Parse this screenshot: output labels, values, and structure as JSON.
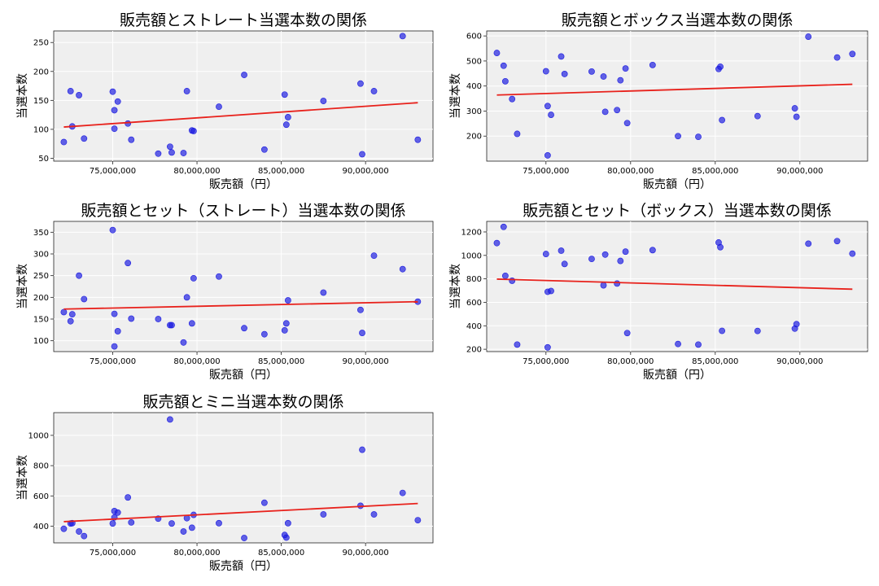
{
  "chart_data": [
    {
      "type": "scatter",
      "title": "販売額とストレート当選本数の関係",
      "xlabel": "販売額（円）",
      "ylabel": "当選本数",
      "xlim": [
        71500000,
        94000000
      ],
      "ylim": [
        45,
        270
      ],
      "xticks": [
        75000000,
        80000000,
        85000000,
        90000000
      ],
      "xtick_labels": [
        "75,000,000",
        "80,000,000",
        "85,000,000",
        "90,000,000"
      ],
      "yticks": [
        50,
        100,
        150,
        200,
        250
      ],
      "ytick_labels": [
        "50",
        "100",
        "150",
        "200",
        "250"
      ],
      "grid": true,
      "points": [
        [
          72100000,
          78
        ],
        [
          72500000,
          166
        ],
        [
          72600000,
          105
        ],
        [
          73000000,
          159
        ],
        [
          73300000,
          84
        ],
        [
          75000000,
          165
        ],
        [
          75100000,
          133
        ],
        [
          75100000,
          101
        ],
        [
          75300000,
          148
        ],
        [
          75900000,
          110
        ],
        [
          76100000,
          82
        ],
        [
          77700000,
          58
        ],
        [
          78400000,
          70
        ],
        [
          78500000,
          60
        ],
        [
          79200000,
          59
        ],
        [
          79400000,
          166
        ],
        [
          79700000,
          98
        ],
        [
          79800000,
          97
        ],
        [
          81300000,
          139
        ],
        [
          82800000,
          194
        ],
        [
          84000000,
          65
        ],
        [
          85200000,
          160
        ],
        [
          85300000,
          108
        ],
        [
          85400000,
          121
        ],
        [
          87500000,
          149
        ],
        [
          89700000,
          179
        ],
        [
          89800000,
          57
        ],
        [
          90500000,
          166
        ],
        [
          92200000,
          261
        ],
        [
          93100000,
          82
        ]
      ],
      "trend": [
        [
          72100000,
          104
        ],
        [
          93100000,
          146
        ]
      ]
    },
    {
      "type": "scatter",
      "title": "販売額とボックス当選本数の関係",
      "xlabel": "販売額（円）",
      "ylabel": "当選本数",
      "xlim": [
        71500000,
        94000000
      ],
      "ylim": [
        100,
        620
      ],
      "xticks": [
        75000000,
        80000000,
        85000000,
        90000000
      ],
      "xtick_labels": [
        "75,000,000",
        "80,000,000",
        "85,000,000",
        "90,000,000"
      ],
      "yticks": [
        200,
        300,
        400,
        500,
        600
      ],
      "ytick_labels": [
        "200",
        "300",
        "400",
        "500",
        "600"
      ],
      "grid": true,
      "points": [
        [
          72100000,
          532
        ],
        [
          72500000,
          481
        ],
        [
          72600000,
          419
        ],
        [
          73000000,
          348
        ],
        [
          73300000,
          209
        ],
        [
          75000000,
          459
        ],
        [
          75100000,
          320
        ],
        [
          75100000,
          123
        ],
        [
          75300000,
          285
        ],
        [
          75900000,
          518
        ],
        [
          76100000,
          448
        ],
        [
          77700000,
          458
        ],
        [
          78400000,
          438
        ],
        [
          78500000,
          297
        ],
        [
          79200000,
          304
        ],
        [
          79400000,
          423
        ],
        [
          79700000,
          470
        ],
        [
          79800000,
          252
        ],
        [
          81300000,
          484
        ],
        [
          82800000,
          200
        ],
        [
          84000000,
          197
        ],
        [
          85200000,
          468
        ],
        [
          85300000,
          477
        ],
        [
          85400000,
          264
        ],
        [
          87500000,
          280
        ],
        [
          89700000,
          311
        ],
        [
          89800000,
          277
        ],
        [
          90500000,
          597
        ],
        [
          92200000,
          514
        ],
        [
          93100000,
          528
        ]
      ],
      "trend": [
        [
          72100000,
          364
        ],
        [
          93100000,
          407
        ]
      ]
    },
    {
      "type": "scatter",
      "title": "販売額とセット（ストレート）当選本数の関係",
      "xlabel": "販売額（円）",
      "ylabel": "当選本数",
      "xlim": [
        71500000,
        94000000
      ],
      "ylim": [
        75,
        375
      ],
      "xticks": [
        75000000,
        80000000,
        85000000,
        90000000
      ],
      "xtick_labels": [
        "75,000,000",
        "80,000,000",
        "85,000,000",
        "90,000,000"
      ],
      "yticks": [
        100,
        150,
        200,
        250,
        300,
        350
      ],
      "ytick_labels": [
        "100",
        "150",
        "200",
        "250",
        "300",
        "350"
      ],
      "grid": true,
      "points": [
        [
          72100000,
          166
        ],
        [
          72500000,
          145
        ],
        [
          72600000,
          161
        ],
        [
          73000000,
          250
        ],
        [
          73300000,
          196
        ],
        [
          75000000,
          355
        ],
        [
          75100000,
          162
        ],
        [
          75100000,
          87
        ],
        [
          75300000,
          122
        ],
        [
          75900000,
          279
        ],
        [
          76100000,
          151
        ],
        [
          77700000,
          150
        ],
        [
          78400000,
          136
        ],
        [
          78500000,
          136
        ],
        [
          79200000,
          96
        ],
        [
          79400000,
          200
        ],
        [
          79700000,
          140
        ],
        [
          79800000,
          244
        ],
        [
          81300000,
          248
        ],
        [
          82800000,
          129
        ],
        [
          84000000,
          115
        ],
        [
          85200000,
          124
        ],
        [
          85300000,
          140
        ],
        [
          85400000,
          193
        ],
        [
          87500000,
          211
        ],
        [
          89700000,
          171
        ],
        [
          89800000,
          118
        ],
        [
          90500000,
          296
        ],
        [
          92200000,
          265
        ],
        [
          93100000,
          190
        ]
      ],
      "trend": [
        [
          72100000,
          173
        ],
        [
          93100000,
          190
        ]
      ]
    },
    {
      "type": "scatter",
      "title": "販売額とセット（ボックス）当選本数の関係",
      "xlabel": "販売額（円）",
      "ylabel": "当選本数",
      "xlim": [
        71500000,
        94000000
      ],
      "ylim": [
        180,
        1290
      ],
      "xticks": [
        75000000,
        80000000,
        85000000,
        90000000
      ],
      "xtick_labels": [
        "75,000,000",
        "80,000,000",
        "85,000,000",
        "90,000,000"
      ],
      "yticks": [
        200,
        400,
        600,
        800,
        1000,
        1200
      ],
      "ytick_labels": [
        "200",
        "400",
        "600",
        "800",
        "1000",
        "1200"
      ],
      "grid": true,
      "points": [
        [
          72100000,
          1105
        ],
        [
          72500000,
          1243
        ],
        [
          72600000,
          826
        ],
        [
          73000000,
          784
        ],
        [
          73300000,
          240
        ],
        [
          75000000,
          1012
        ],
        [
          75100000,
          690
        ],
        [
          75100000,
          216
        ],
        [
          75300000,
          697
        ],
        [
          75900000,
          1040
        ],
        [
          76100000,
          927
        ],
        [
          77700000,
          970
        ],
        [
          78400000,
          745
        ],
        [
          78500000,
          1007
        ],
        [
          79200000,
          760
        ],
        [
          79400000,
          953
        ],
        [
          79700000,
          1032
        ],
        [
          79800000,
          338
        ],
        [
          81300000,
          1045
        ],
        [
          82800000,
          245
        ],
        [
          84000000,
          240
        ],
        [
          85200000,
          1110
        ],
        [
          85300000,
          1070
        ],
        [
          85400000,
          357
        ],
        [
          87500000,
          356
        ],
        [
          89700000,
          376
        ],
        [
          89800000,
          414
        ],
        [
          90500000,
          1100
        ],
        [
          92200000,
          1122
        ],
        [
          93100000,
          1015
        ]
      ],
      "trend": [
        [
          72100000,
          798
        ],
        [
          93100000,
          712
        ]
      ]
    },
    {
      "type": "scatter",
      "title": "販売額とミニ当選本数の関係",
      "xlabel": "販売額（円）",
      "ylabel": "当選本数",
      "xlim": [
        71500000,
        94000000
      ],
      "ylim": [
        290,
        1150
      ],
      "xticks": [
        75000000,
        80000000,
        85000000,
        90000000
      ],
      "xtick_labels": [
        "75,000,000",
        "80,000,000",
        "85,000,000",
        "90,000,000"
      ],
      "yticks": [
        400,
        600,
        800,
        1000
      ],
      "ytick_labels": [
        "400",
        "600",
        "800",
        "1000"
      ],
      "grid": true,
      "points": [
        [
          72100000,
          383
        ],
        [
          72500000,
          418
        ],
        [
          72600000,
          420
        ],
        [
          73000000,
          365
        ],
        [
          73300000,
          335
        ],
        [
          75000000,
          418
        ],
        [
          75100000,
          458
        ],
        [
          75100000,
          500
        ],
        [
          75300000,
          490
        ],
        [
          75900000,
          590
        ],
        [
          76100000,
          425
        ],
        [
          77700000,
          450
        ],
        [
          78400000,
          1105
        ],
        [
          78500000,
          418
        ],
        [
          79200000,
          365
        ],
        [
          79400000,
          453
        ],
        [
          79700000,
          390
        ],
        [
          79800000,
          475
        ],
        [
          81300000,
          420
        ],
        [
          82800000,
          322
        ],
        [
          84000000,
          555
        ],
        [
          85200000,
          342
        ],
        [
          85300000,
          325
        ],
        [
          85400000,
          420
        ],
        [
          87500000,
          478
        ],
        [
          89700000,
          535
        ],
        [
          89800000,
          905
        ],
        [
          90500000,
          478
        ],
        [
          92200000,
          620
        ],
        [
          93100000,
          440
        ]
      ],
      "trend": [
        [
          72100000,
          430
        ],
        [
          93100000,
          550
        ]
      ]
    }
  ]
}
